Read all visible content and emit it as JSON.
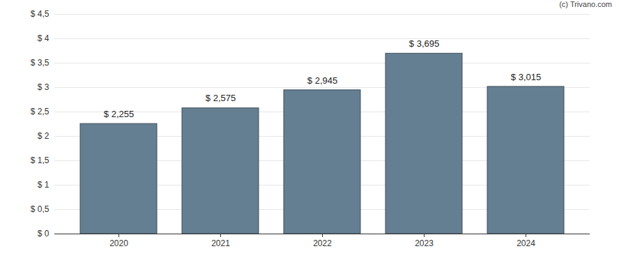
{
  "chart_data": {
    "type": "bar",
    "annotations": [
      "(c) Trivano.com"
    ],
    "categories": [
      "2020",
      "2021",
      "2022",
      "2023",
      "2024"
    ],
    "values": [
      2.255,
      2.575,
      2.945,
      3.695,
      3.015
    ],
    "value_labels": [
      "$ 2,255",
      "$ 2,575",
      "$ 2,945",
      "$ 3,695",
      "$ 3,015"
    ],
    "data_labels": true,
    "color": "#647f91",
    "ylim": [
      0,
      4.5
    ],
    "yticks": [
      {
        "value": 0,
        "label": "$ 0"
      },
      {
        "value": 0.5,
        "label": "$ 0,5"
      },
      {
        "value": 1,
        "label": "$ 1"
      },
      {
        "value": 1.5,
        "label": "$ 1,5"
      },
      {
        "value": 2,
        "label": "$ 2"
      },
      {
        "value": 2.5,
        "label": "$ 2,5"
      },
      {
        "value": 3,
        "label": "$ 3"
      },
      {
        "value": 3.5,
        "label": "$ 3,5"
      },
      {
        "value": 4,
        "label": "$ 4"
      },
      {
        "value": 4.5,
        "label": "$ 4,5"
      }
    ],
    "grid": true
  }
}
